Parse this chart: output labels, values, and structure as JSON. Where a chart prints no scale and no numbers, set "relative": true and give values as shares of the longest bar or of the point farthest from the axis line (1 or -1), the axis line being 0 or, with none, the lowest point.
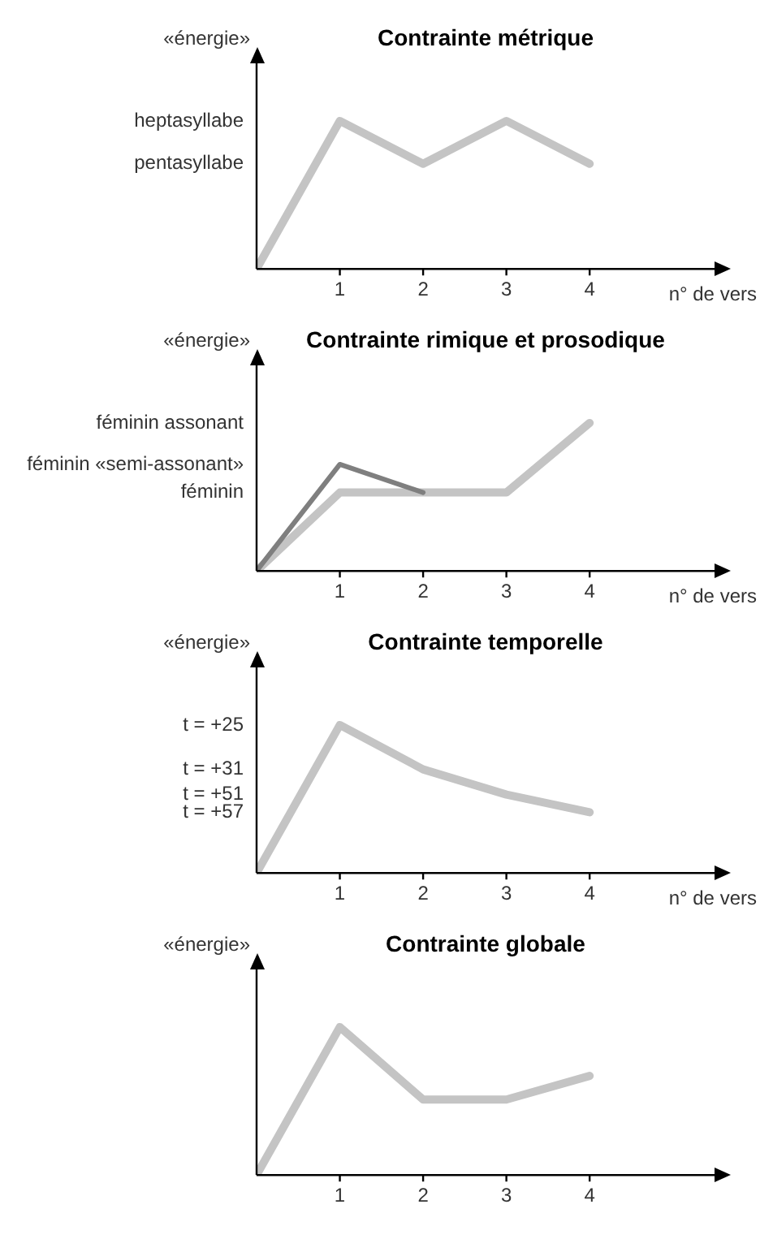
{
  "chart_data": [
    {
      "type": "line",
      "title": "Contrainte métrique",
      "ylabel": "«énergie»",
      "xlabel": "n° de vers",
      "relative": true,
      "marker": "none",
      "x": [
        0,
        1,
        2,
        3,
        4
      ],
      "xlim": [
        0,
        5.5
      ],
      "xticks": [
        1,
        2,
        3,
        4
      ],
      "annotations": [
        "heptasyllabe",
        "pentasyllabe"
      ],
      "series": [
        {
          "color": "#c4c4c4",
          "values": [
            0,
            1,
            0.71,
            1,
            0.71
          ]
        }
      ]
    },
    {
      "type": "line",
      "title": "Contrainte rimique et prosodique",
      "ylabel": "«énergie»",
      "xlabel": "n° de vers",
      "relative": true,
      "marker": "none",
      "x": [
        0,
        1,
        2,
        3,
        4
      ],
      "xlim": [
        0,
        5.5
      ],
      "xticks": [
        1,
        2,
        3,
        4
      ],
      "annotations": [
        "féminin assonant",
        "féminin «semi-assonant»",
        "féminin"
      ],
      "series": [
        {
          "color": "#c4c4c4",
          "values": [
            0,
            0.53,
            0.53,
            0.53,
            1
          ]
        },
        {
          "color": "#7f7f7f",
          "values": [
            0,
            0.72,
            0.53,
            null,
            null
          ]
        }
      ]
    },
    {
      "type": "line",
      "title": "Contrainte temporelle",
      "ylabel": "«énergie»",
      "xlabel": "n° de vers",
      "relative": true,
      "marker": "none",
      "x": [
        0,
        1,
        2,
        3,
        4
      ],
      "xlim": [
        0,
        5.5
      ],
      "xticks": [
        1,
        2,
        3,
        4
      ],
      "annotations": [
        "t = +25",
        "t = +31",
        "t = +51",
        "t = +57"
      ],
      "series": [
        {
          "color": "#c4c4c4",
          "values": [
            0,
            1,
            0.7,
            0.53,
            0.41
          ]
        }
      ]
    },
    {
      "type": "line",
      "title": "Contrainte globale",
      "ylabel": "«énergie»",
      "relative": true,
      "marker": "none",
      "x": [
        0,
        1,
        2,
        3,
        4
      ],
      "xlim": [
        0,
        5.5
      ],
      "xticks": [
        1,
        2,
        3,
        4
      ],
      "series": [
        {
          "color": "#c4c4c4",
          "values": [
            0,
            1,
            0.51,
            0.51,
            0.67
          ]
        }
      ]
    }
  ]
}
